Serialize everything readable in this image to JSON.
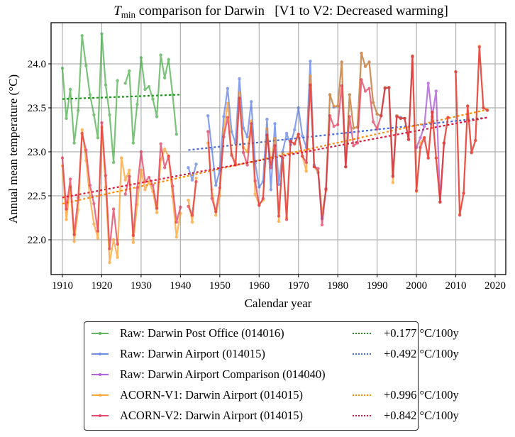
{
  "chart_data": {
    "type": "line",
    "title_main": "T",
    "title_sub": "min",
    "title_rest": " comparison for Darwin   [V1 to V2: Decreased warming]",
    "xlabel": "Calendar year",
    "ylabel": "Annual mean temperature (°C)",
    "xlim": [
      1907,
      2023
    ],
    "ylim": [
      21.6,
      24.47
    ],
    "xticks": [
      1910,
      1920,
      1930,
      1940,
      1950,
      1960,
      1970,
      1980,
      1990,
      2000,
      2010,
      2020
    ],
    "yticks": [
      22.0,
      22.5,
      23.0,
      23.5,
      24.0
    ],
    "ytick_labels": [
      "22.0",
      "22.5",
      "23.0",
      "23.5",
      "24.0"
    ],
    "grid": true,
    "legend_position": "below",
    "series": [
      {
        "name": "Raw: Darwin Post Office (014016)",
        "color": "#2ca02c",
        "x": [
          1910,
          1911,
          1912,
          1913,
          1914,
          1915,
          1916,
          1917,
          1918,
          1919,
          1920,
          1921,
          1922,
          1923,
          1924,
          1926,
          1927,
          1928,
          1929,
          1930,
          1931,
          1932,
          1933,
          1934,
          1935,
          1936,
          1937,
          1938,
          1939,
          1940
        ],
        "y": [
          23.95,
          23.38,
          23.71,
          23.1,
          23.47,
          24.32,
          23.98,
          23.65,
          23.42,
          23.16,
          24.34,
          23.76,
          23.42,
          22.88,
          23.81,
          23.78,
          23.92,
          23.1,
          23.54,
          24.07,
          23.71,
          23.74,
          23.6,
          23.4,
          24.1,
          23.84,
          24.05,
          23.65,
          23.2,
          null
        ]
      },
      {
        "name": "Raw: Darwin Airport (014015)",
        "color": "#4169e1",
        "x": [
          1942,
          1943,
          1944,
          1947,
          1948,
          1949,
          1950,
          1951,
          1952,
          1953,
          1954,
          1955,
          1956,
          1957,
          1958,
          1959,
          1960,
          1961,
          1962,
          1963,
          1964,
          1965,
          1966,
          1967,
          1968,
          1969,
          1970,
          1971,
          1972,
          1973,
          1974,
          1975,
          1976,
          1977,
          1978,
          1979,
          1980,
          1981,
          1982,
          1983,
          1984,
          1985,
          1986,
          1987,
          1988,
          1989,
          1990,
          1991,
          1992,
          1993,
          1994,
          1995,
          1996,
          1997,
          1998,
          1999
        ],
        "y": [
          22.82,
          22.68,
          22.86,
          23.41,
          23.03,
          22.62,
          22.79,
          23.4,
          23.72,
          23.23,
          23.1,
          23.83,
          23.27,
          23.17,
          23.57,
          22.87,
          22.6,
          22.66,
          23.37,
          22.57,
          23.32,
          22.63,
          23.0,
          23.21,
          23.08,
          23.25,
          23.5,
          23.18,
          23.05,
          24.03,
          22.85,
          22.76,
          22.24,
          22.57,
          23.65,
          23.51,
          23.52,
          24.02,
          22.83,
          23.65,
          23.27,
          23.28,
          24.12,
          23.97,
          24.02,
          23.56,
          23.43,
          23.41,
          23.73,
          23.73,
          22.73,
          23.41,
          23.39,
          23.38,
          23.14,
          24.09
        ]
      },
      {
        "name": "Raw: Darwin Airport Comparison (014040)",
        "color": "#9932cc",
        "x": [
          2000,
          2001,
          2002,
          2003,
          2004,
          2005,
          2006,
          2007
        ],
        "y": [
          23.05,
          23.16,
          23.29,
          23.78,
          23.4,
          23.69,
          22.43,
          23.1
        ]
      },
      {
        "name": "ACORN-V1: Darwin Airport (014015)",
        "color": "#ff8c00",
        "x": [
          1910,
          1911,
          1912,
          1913,
          1914,
          1915,
          1916,
          1917,
          1918,
          1919,
          1920,
          1921,
          1922,
          1923,
          1924,
          1925,
          1926,
          1927,
          1928,
          1929,
          1930,
          1931,
          1932,
          1933,
          1934,
          1935,
          1936,
          1937,
          1938,
          1939,
          1940,
          1941,
          1942,
          1943,
          1944,
          1947,
          1948,
          1949,
          1950,
          1951,
          1952,
          1953,
          1954,
          1955,
          1956,
          1957,
          1958,
          1959,
          1960,
          1961,
          1962,
          1963,
          1964,
          1965,
          1966,
          1967,
          1968,
          1969,
          1970,
          1971,
          1972,
          1973,
          1974,
          1975,
          1976,
          1977,
          1978,
          1979,
          1980,
          1981,
          1982,
          1983,
          1984,
          1985,
          1986,
          1987,
          1988,
          1989,
          1990,
          1991,
          1992,
          1993,
          1994,
          1995,
          1996,
          1997,
          1998,
          1999,
          2000,
          2001,
          2002,
          2003,
          2004,
          2005,
          2006,
          2007,
          2008,
          2009,
          2010,
          2011,
          2012,
          2013,
          2014,
          2015,
          2016,
          2017,
          2018
        ],
        "y": [
          22.84,
          22.23,
          22.6,
          21.98,
          22.34,
          23.25,
          22.9,
          22.48,
          22.18,
          22.02,
          23.28,
          22.6,
          21.74,
          22.0,
          21.8,
          22.93,
          22.68,
          22.79,
          21.97,
          22.4,
          22.79,
          22.57,
          22.66,
          22.55,
          22.31,
          22.91,
          23.03,
          22.95,
          22.49,
          22.03,
          22.3,
          null,
          22.45,
          22.2,
          22.7,
          23.1,
          22.57,
          22.28,
          22.5,
          23.25,
          23.55,
          22.98,
          22.87,
          23.67,
          23.05,
          23.0,
          23.35,
          22.52,
          22.4,
          22.45,
          23.26,
          22.86,
          23.15,
          22.21,
          22.98,
          22.25,
          23.12,
          23.09,
          23.2,
          22.95,
          22.78,
          23.86,
          22.83,
          22.77,
          22.3,
          22.56,
          23.65,
          23.52,
          23.52,
          24.02,
          22.83,
          23.65,
          23.27,
          23.28,
          24.12,
          23.97,
          24.02,
          23.56,
          23.43,
          23.41,
          23.73,
          23.73,
          22.65,
          23.41,
          23.38,
          23.38,
          23.14,
          24.09,
          22.55,
          23.1,
          23.16,
          22.93,
          23.45,
          22.93,
          22.43,
          23.1,
          23.39,
          null,
          23.91,
          22.29,
          22.53,
          23.52,
          22.99,
          23.13,
          24.2,
          23.5,
          23.48
        ]
      },
      {
        "name": "ACORN-V2: Darwin Airport (014015)",
        "color": "#dc143c",
        "x": [
          1910,
          1911,
          1912,
          1913,
          1914,
          1915,
          1916,
          1917,
          1918,
          1919,
          1920,
          1921,
          1922,
          1923,
          1924,
          1925,
          1926,
          1927,
          1928,
          1929,
          1930,
          1931,
          1932,
          1933,
          1934,
          1935,
          1936,
          1937,
          1938,
          1939,
          1940,
          1941,
          1942,
          1943,
          1944,
          1947,
          1948,
          1949,
          1950,
          1951,
          1952,
          1953,
          1954,
          1955,
          1956,
          1957,
          1958,
          1959,
          1960,
          1961,
          1962,
          1963,
          1964,
          1965,
          1966,
          1967,
          1968,
          1969,
          1970,
          1971,
          1972,
          1973,
          1974,
          1975,
          1976,
          1977,
          1978,
          1979,
          1980,
          1981,
          1982,
          1983,
          1984,
          1985,
          1986,
          1987,
          1988,
          1989,
          1990,
          1991,
          1992,
          1993,
          1994,
          1995,
          1996,
          1997,
          1998,
          1999,
          2000,
          2001,
          2002,
          2003,
          2004,
          2005,
          2006,
          2007,
          2008,
          2009,
          2010,
          2011,
          2012,
          2013,
          2014,
          2015,
          2016,
          2017,
          2018
        ],
        "y": [
          22.93,
          22.35,
          22.69,
          22.06,
          22.48,
          23.21,
          23.02,
          22.62,
          22.41,
          22.1,
          23.33,
          22.73,
          21.9,
          22.35,
          21.95,
          null,
          22.52,
          22.72,
          22.05,
          22.59,
          23.0,
          22.66,
          22.71,
          22.62,
          22.36,
          23.09,
          22.82,
          22.95,
          22.61,
          22.2,
          22.37,
          null,
          22.38,
          22.28,
          22.66,
          23.23,
          22.47,
          22.32,
          22.59,
          23.17,
          23.39,
          22.96,
          22.85,
          23.61,
          22.99,
          22.85,
          23.32,
          22.67,
          22.39,
          22.47,
          23.19,
          22.82,
          23.07,
          22.27,
          22.93,
          22.23,
          23.12,
          23.09,
          23.2,
          22.95,
          22.88,
          23.76,
          22.83,
          22.81,
          22.17,
          22.58,
          23.41,
          23.29,
          23.31,
          23.75,
          22.83,
          23.4,
          23.07,
          23.1,
          23.82,
          23.69,
          23.72,
          23.34,
          23.26,
          23.41,
          23.72,
          23.73,
          22.72,
          23.4,
          23.38,
          23.38,
          23.14,
          24.08,
          22.56,
          23.05,
          23.16,
          22.93,
          23.45,
          22.93,
          22.43,
          23.1,
          23.39,
          null,
          23.91,
          22.28,
          22.53,
          23.52,
          22.99,
          23.13,
          24.19,
          23.5,
          23.47
        ]
      }
    ],
    "trends": [
      {
        "label": "+0.177 °C/100y",
        "color": "#228b22",
        "x": [
          1910,
          1940
        ],
        "y": [
          23.6,
          23.65
        ]
      },
      {
        "label": "+0.492 °C/100y",
        "color": "#4169e1",
        "x": [
          1942,
          2018
        ],
        "y": [
          23.02,
          23.39
        ]
      },
      {
        "label": "+0.996 °C/100y",
        "color": "#ff8c00",
        "x": [
          1910,
          2018
        ],
        "y": [
          22.41,
          23.48
        ]
      },
      {
        "label": "+0.842 °C/100y",
        "color": "#dc143c",
        "x": [
          1910,
          2018
        ],
        "y": [
          22.48,
          23.39
        ]
      }
    ]
  },
  "legend": {
    "left": [
      {
        "label": "Raw: Darwin Post Office (014016)",
        "color": "#2ca02c"
      },
      {
        "label": "Raw: Darwin Airport (014015)",
        "color": "#4169e1"
      },
      {
        "label": "Raw: Darwin Airport Comparison (014040)",
        "color": "#9932cc"
      },
      {
        "label": "ACORN-V1: Darwin Airport (014015)",
        "color": "#ff8c00"
      },
      {
        "label": "ACORN-V2: Darwin Airport (014015)",
        "color": "#dc143c"
      }
    ],
    "right": [
      {
        "label": "+0.177 °C/100y",
        "color": "#228b22"
      },
      {
        "label": "+0.492 °C/100y",
        "color": "#4169e1"
      },
      {
        "label": "",
        "color": ""
      },
      {
        "label": "+0.996 °C/100y",
        "color": "#ff8c00"
      },
      {
        "label": "+0.842 °C/100y",
        "color": "#dc143c"
      }
    ]
  }
}
